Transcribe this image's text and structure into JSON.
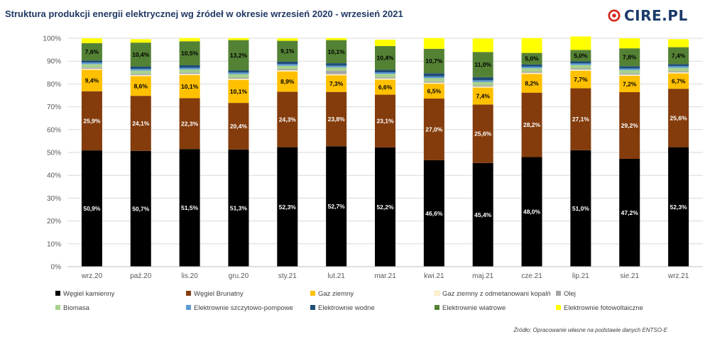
{
  "title": "Struktura produkcji energii elektrycznej wg źródeł w okresie wrzesień 2020 - wrzesień 2021",
  "logo": {
    "text": "CIRE.PL",
    "color": "#1b3a6b",
    "accent": "#d9261c"
  },
  "source": "Źródło: Opracowanie własne na podstawie danych ENTSO-E",
  "chart_data": {
    "type": "bar",
    "stacked": true,
    "percent": true,
    "ylim": [
      0,
      100
    ],
    "yticks": [
      "0%",
      "10%",
      "20%",
      "30%",
      "40%",
      "50%",
      "60%",
      "70%",
      "80%",
      "90%",
      "100%"
    ],
    "grid": true,
    "legend_position": "bottom",
    "categories": [
      "wrz.20",
      "paź.20",
      "lis.20",
      "gru.20",
      "sty.21",
      "lut.21",
      "mar.21",
      "kwi.21",
      "maj.21",
      "cze.21",
      "lip.21",
      "sie.21",
      "wrz.21"
    ],
    "series": [
      {
        "name": "Węgiel kamienny",
        "color": "#000000",
        "label_color": "#ffffff",
        "values": [
          50.9,
          50.7,
          51.5,
          51.3,
          52.3,
          52.7,
          52.2,
          46.6,
          45.4,
          48.0,
          51.0,
          47.2,
          52.3
        ],
        "labels": [
          "50,9%",
          "50,7%",
          "51,5%",
          "51,3%",
          "52,3%",
          "52,7%",
          "52,2%",
          "46,6%",
          "45,4%",
          "48,0%",
          "51,0%",
          "47,2%",
          "52,3%"
        ]
      },
      {
        "name": "Węgiel Brunatny",
        "color": "#843c0c",
        "label_color": "#ffffff",
        "values": [
          25.9,
          24.1,
          22.3,
          20.4,
          24.3,
          23.8,
          23.1,
          27.0,
          25.6,
          28.2,
          27.1,
          29.2,
          25.6
        ],
        "labels": [
          "25,9%",
          "24,1%",
          "22,3%",
          "20,4%",
          "24,3%",
          "23,8%",
          "23,1%",
          "27,0%",
          "25,6%",
          "28,2%",
          "27,1%",
          "29,2%",
          "25,6%"
        ]
      },
      {
        "name": "Gaz  ziemny",
        "color": "#ffc000",
        "label_color": "#000000",
        "values": [
          9.4,
          8.6,
          10.1,
          10.1,
          8.9,
          7.3,
          6.6,
          6.5,
          7.4,
          8.2,
          7.7,
          7.2,
          6.7
        ],
        "labels": [
          "9,4%",
          "8,6%",
          "10,1%",
          "10,1%",
          "8,9%",
          "7,3%",
          "6,6%",
          "6,5%",
          "7,4%",
          "8,2%",
          "7,7%",
          "7,2%",
          "6,7%"
        ]
      },
      {
        "name": "Gaz ziemny z odmetanowani kopalń",
        "color": "#fff2cc",
        "values": [
          0.5,
          0.5,
          0.5,
          0.5,
          0.5,
          0.5,
          0.5,
          0.5,
          0.5,
          0.5,
          0.5,
          0.5,
          0.5
        ]
      },
      {
        "name": "Olej",
        "color": "#a5a5a5",
        "values": [
          0.5,
          0.5,
          0.5,
          0.5,
          0.5,
          1.5,
          0.5,
          0.5,
          0.5,
          0.5,
          0.5,
          0.5,
          0.5
        ]
      },
      {
        "name": "Biomasa",
        "color": "#a9d18e",
        "values": [
          1.5,
          1.5,
          1.5,
          1.5,
          1.5,
          1.5,
          1.5,
          1.5,
          1.5,
          1.5,
          1.5,
          1.5,
          1.5
        ]
      },
      {
        "name": "Elektrownie szczytowo-pompowe",
        "color": "#5b9bd5",
        "values": [
          0.7,
          0.7,
          0.7,
          0.7,
          0.7,
          0.7,
          0.7,
          0.7,
          0.7,
          0.7,
          0.7,
          0.7,
          0.7
        ]
      },
      {
        "name": "Elektrownie wodne",
        "color": "#1f4e79",
        "values": [
          0.9,
          1.1,
          1.1,
          1.0,
          1.1,
          1.1,
          1.1,
          1.4,
          1.4,
          1.0,
          0.9,
          1.0,
          0.9
        ]
      },
      {
        "name": "Elektrownie wiatrowe",
        "color": "#548235",
        "label_color": "#000000",
        "values": [
          7.6,
          10.4,
          10.5,
          13.2,
          9.1,
          10.1,
          10.4,
          10.7,
          11.0,
          5.0,
          5.0,
          7.8,
          7.4
        ],
        "labels": [
          "7,6%",
          "10,4%",
          "10,5%",
          "13,2%",
          "9,1%",
          "10,1%",
          "10,4%",
          "10,7%",
          "11,0%",
          "5,0%",
          "5,0%",
          "7,8%",
          "7,4%"
        ]
      },
      {
        "name": "Elektrownie fotowoltaiczne",
        "color": "#ffff00",
        "values": [
          2.1,
          1.5,
          1.4,
          0.9,
          1.1,
          0.9,
          2.8,
          4.7,
          5.9,
          6.5,
          5.9,
          4.4,
          3.5
        ]
      }
    ]
  }
}
